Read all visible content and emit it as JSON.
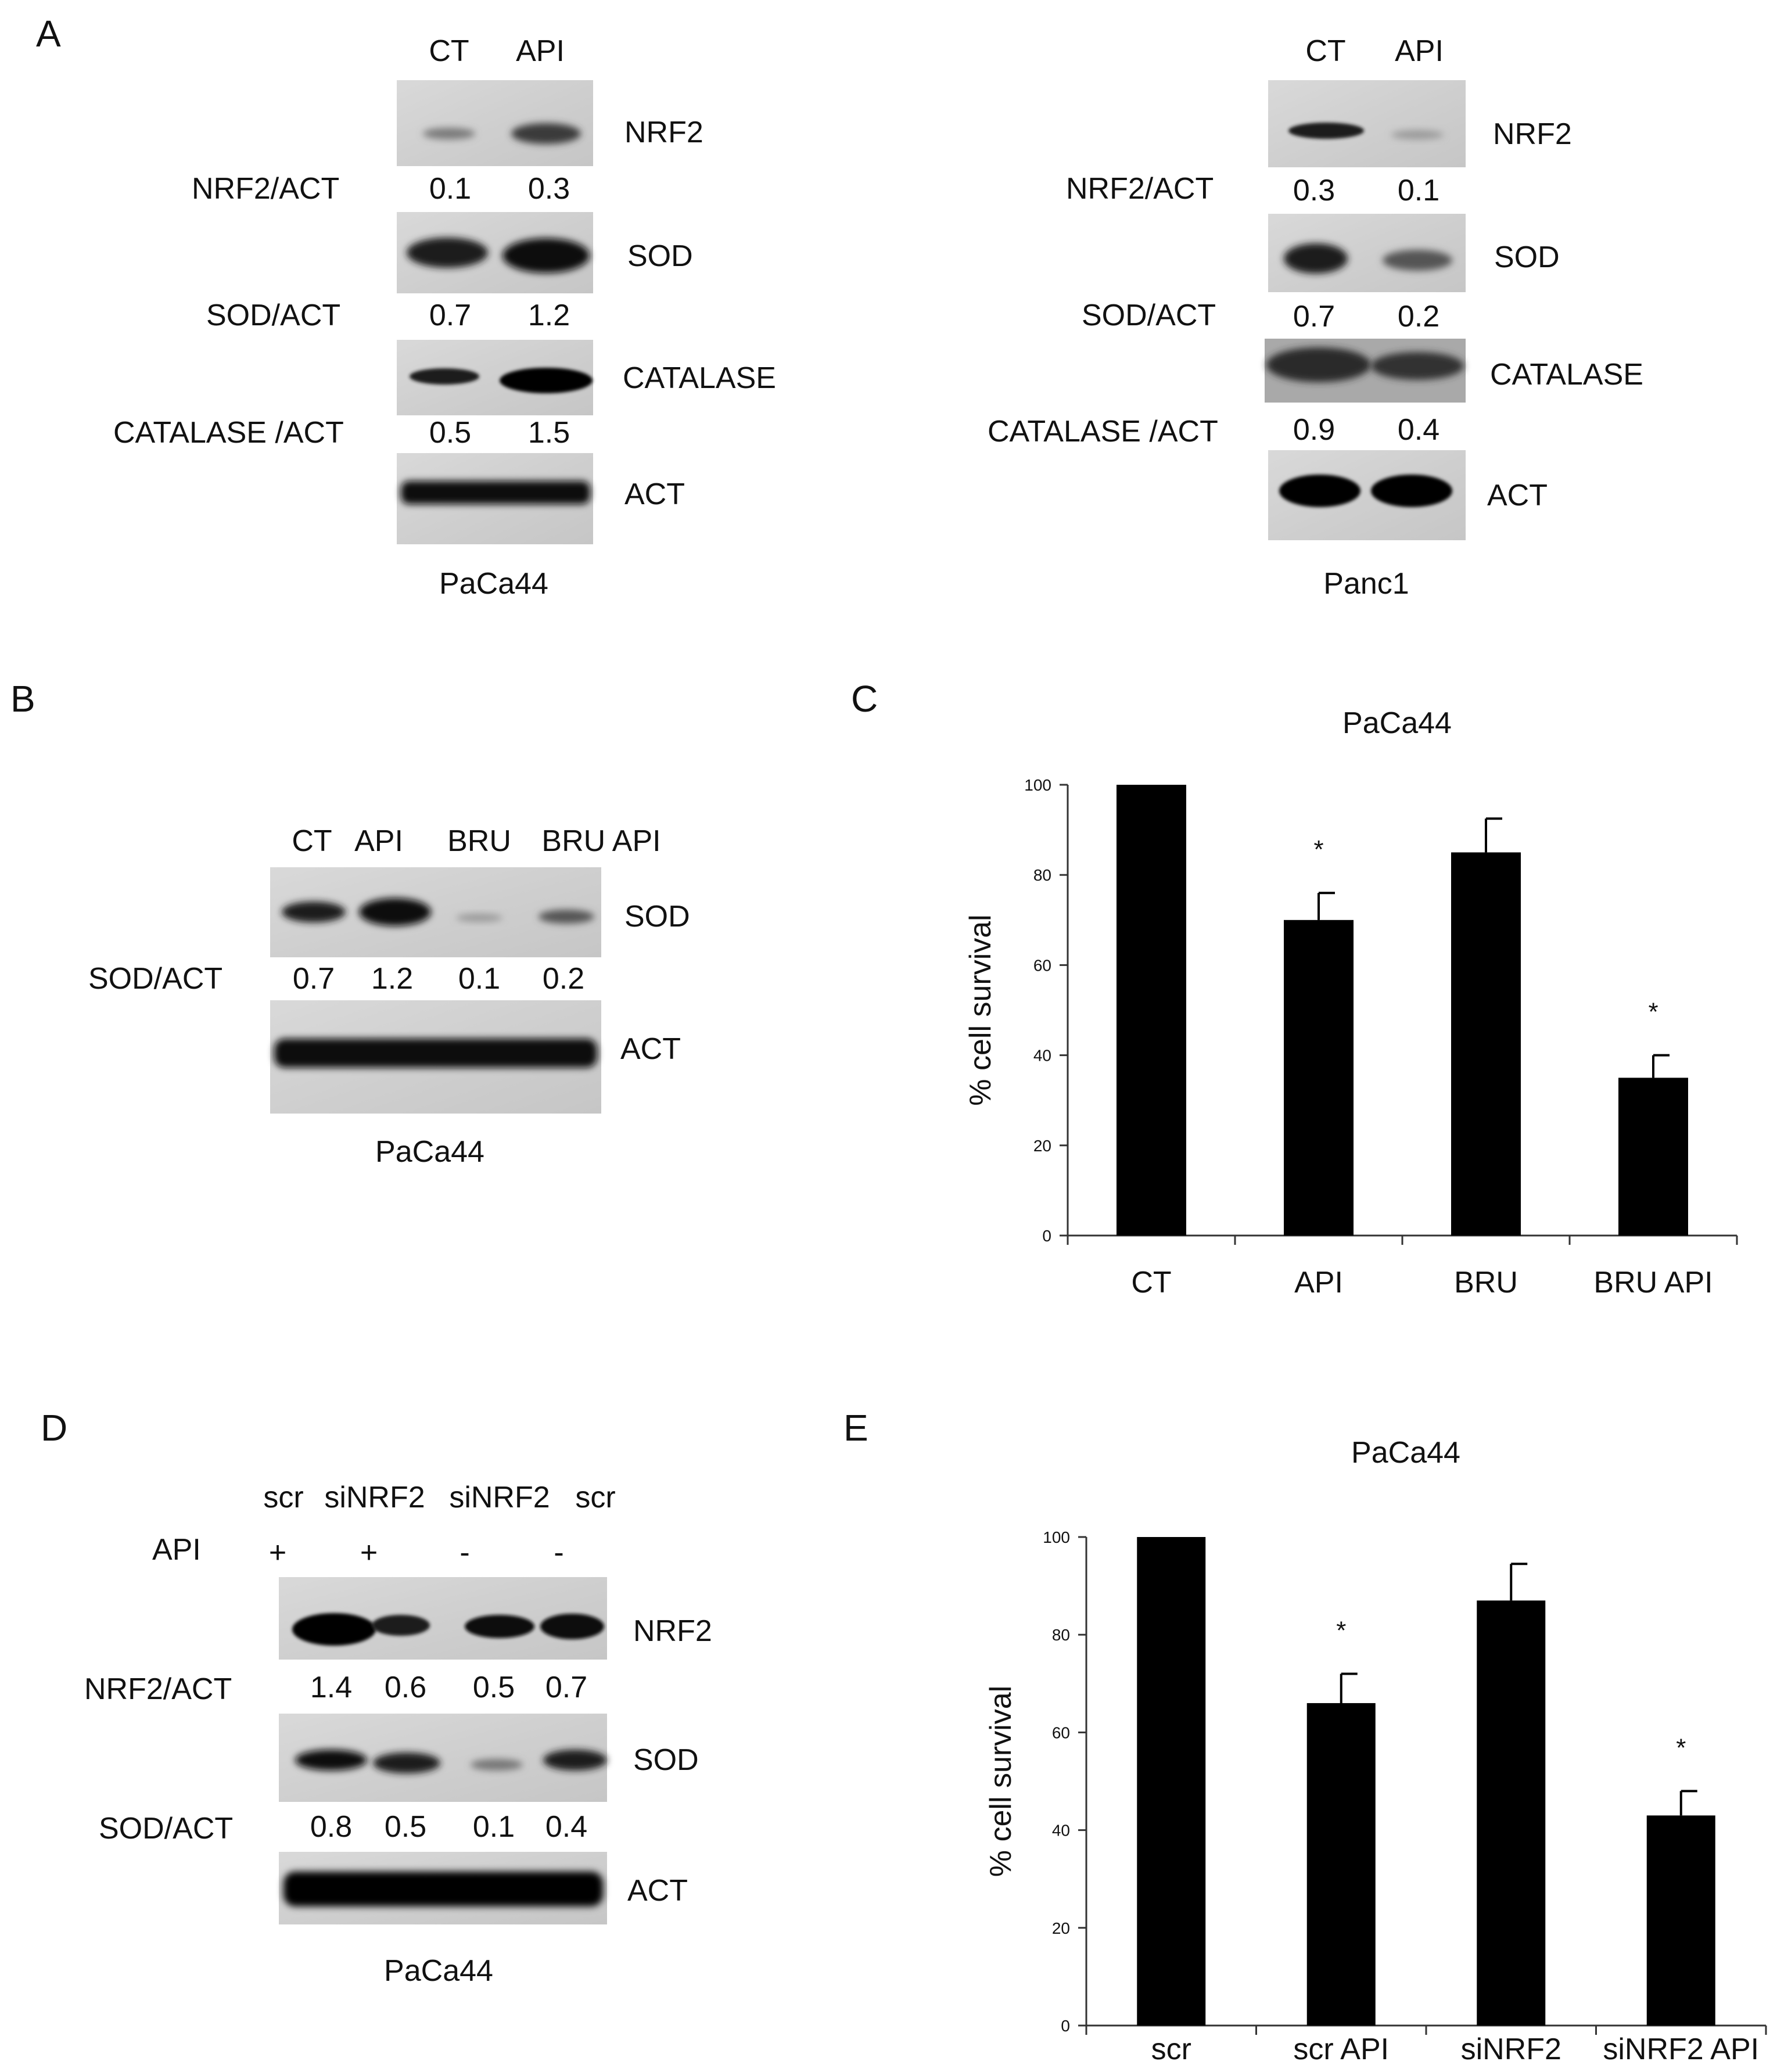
{
  "panel_letters": [
    "A",
    "B",
    "C",
    "D",
    "E"
  ],
  "panel_a": {
    "left": {
      "cell_line": "PaCa44",
      "lanes": [
        "CT",
        "API"
      ],
      "bands": [
        "NRF2",
        "SOD",
        "CATALASE",
        "ACT"
      ],
      "ratios": [
        {
          "label": "NRF2/ACT",
          "values": [
            "0.1",
            "0.3"
          ]
        },
        {
          "label": "SOD/ACT",
          "values": [
            "0.7",
            "1.2"
          ]
        },
        {
          "label": "CATALASE /ACT",
          "values": [
            "0.5",
            "1.5"
          ]
        }
      ]
    },
    "right": {
      "cell_line": "Panc1",
      "lanes": [
        "CT",
        "API"
      ],
      "bands": [
        "NRF2",
        "SOD",
        "CATALASE",
        "ACT"
      ],
      "ratios": [
        {
          "label": "NRF2/ACT",
          "values": [
            "0.3",
            "0.1"
          ]
        },
        {
          "label": "SOD/ACT",
          "values": [
            "0.7",
            "0.2"
          ]
        },
        {
          "label": "CATALASE /ACT",
          "values": [
            "0.9",
            "0.4"
          ]
        }
      ]
    }
  },
  "panel_b": {
    "cell_line": "PaCa44",
    "lanes": [
      "CT",
      "API",
      "BRU",
      "BRU API"
    ],
    "bands": [
      "SOD",
      "ACT"
    ],
    "ratios": [
      {
        "label": "SOD/ACT",
        "values": [
          "0.7",
          "1.2",
          "0.1",
          "0.2"
        ]
      }
    ]
  },
  "panel_d": {
    "cell_line": "PaCa44",
    "lanes": [
      "scr",
      "siNRF2",
      "siNRF2",
      "scr"
    ],
    "treatment_label": "API",
    "treatment_signs": [
      "+",
      "+",
      "-",
      "-"
    ],
    "bands": [
      "NRF2",
      "SOD",
      "ACT"
    ],
    "ratios": [
      {
        "label": "NRF2/ACT",
        "values": [
          "1.4",
          "0.6",
          "0.5",
          "0.7"
        ]
      },
      {
        "label": "SOD/ACT",
        "values": [
          "0.8",
          "0.5",
          "0.1",
          "0.4"
        ]
      }
    ]
  },
  "chart_data": [
    {
      "type": "bar",
      "panel": "C",
      "title": "PaCa44",
      "ylabel": "% cell survival",
      "xlabel": "",
      "categories": [
        "CT",
        "API",
        "BRU",
        "BRU API"
      ],
      "values": [
        100,
        70,
        85,
        35
      ],
      "errors": [
        0,
        6,
        7.5,
        5
      ],
      "significance": [
        "",
        "*",
        "",
        "*"
      ],
      "ylim": [
        0,
        100
      ],
      "yticks": [
        "0",
        "20",
        "40",
        "60",
        "80",
        "100"
      ],
      "grid": false,
      "bar_color": "#000000"
    },
    {
      "type": "bar",
      "panel": "E",
      "title": "PaCa44",
      "ylabel": "% cell survival",
      "xlabel": "",
      "categories": [
        "scr",
        "scr API",
        "siNRF2",
        "siNRF2 API"
      ],
      "values": [
        100,
        66,
        87,
        43
      ],
      "errors": [
        0,
        6,
        7.5,
        5
      ],
      "significance": [
        "",
        "*",
        "",
        "*"
      ],
      "ylim": [
        0,
        100
      ],
      "yticks": [
        "0",
        "20",
        "40",
        "60",
        "80",
        "100"
      ],
      "grid": false,
      "bar_color": "#000000"
    }
  ]
}
